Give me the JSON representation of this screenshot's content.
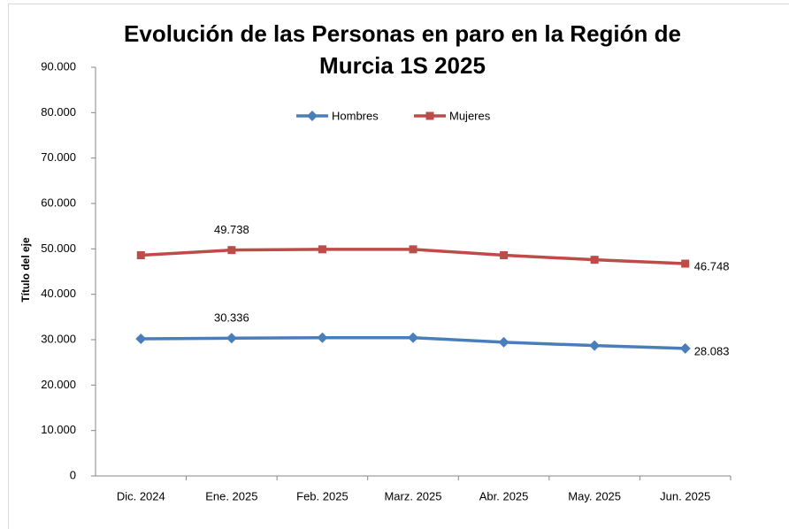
{
  "chart_data": {
    "type": "line",
    "title": "Evolución de las Personas en paro en la Región de Murcia 1S 2025",
    "y_label": "Título del eje",
    "categories": [
      "Dic. 2024",
      "Ene. 2025",
      "Feb. 2025",
      "Marz. 2025",
      "Abr. 2025",
      "May. 2025",
      "Jun. 2025"
    ],
    "series": [
      {
        "name": "Hombres",
        "color": "#4a7ebb",
        "marker": "diamond",
        "values": [
          30200,
          30336,
          30450,
          30450,
          29450,
          28700,
          28083
        ],
        "value_labels": [
          null,
          "30.336",
          null,
          null,
          null,
          null,
          "28.083"
        ]
      },
      {
        "name": "Mujeres",
        "color": "#be4b48",
        "marker": "square",
        "values": [
          48600,
          49738,
          49900,
          49900,
          48600,
          47600,
          46748
        ],
        "value_labels": [
          null,
          "49.738",
          null,
          null,
          null,
          null,
          "46.748"
        ]
      }
    ],
    "ylim": [
      0,
      90000
    ],
    "yticks": [
      0,
      {
        "value": 10000,
        "label": "10.000"
      },
      {
        "value": 20000,
        "label": "20.000"
      },
      {
        "value": 30000,
        "label": "30.000"
      },
      {
        "value": 40000,
        "label": "40.000"
      },
      {
        "value": 50000,
        "label": "50.000"
      },
      {
        "value": 60000,
        "label": "60.000"
      },
      {
        "value": 70000,
        "label": "70.000"
      },
      {
        "value": 80000,
        "label": "80.000"
      },
      {
        "value": 90000,
        "label": "90.000"
      }
    ],
    "grid": false,
    "legend": "top"
  }
}
